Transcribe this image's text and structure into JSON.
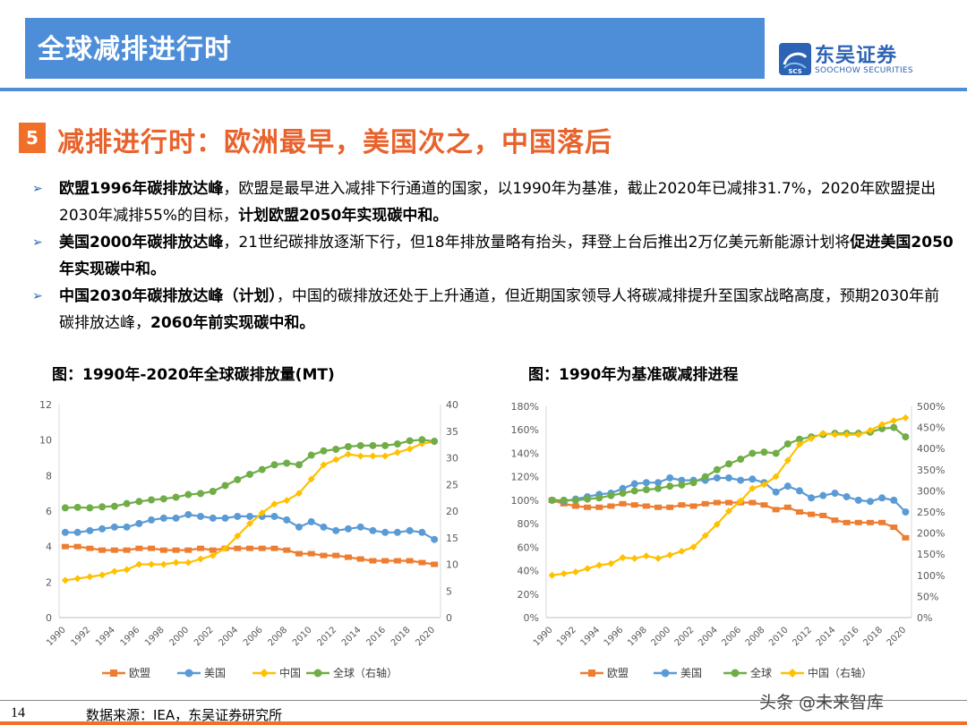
{
  "header": {
    "title": "全球减排进行时"
  },
  "logo": {
    "cn": "东吴证券",
    "en": "SOOCHOW SECURITIES",
    "mark": "SCS"
  },
  "section": {
    "number": "5",
    "title": "减排进行时：欧洲最早，美国次之，中国落后"
  },
  "bullets": [
    {
      "parts": [
        {
          "t": "欧盟1996年碳排放达峰",
          "b": true
        },
        {
          "t": "，欧盟是最早进入减排下行通道的国家，以1990年为基准，截止2020年已减排31.7%，2020年欧盟提出2030年减排55%的目标，",
          "b": false
        },
        {
          "t": "计划欧盟2050年实现碳中和。",
          "b": true
        }
      ]
    },
    {
      "parts": [
        {
          "t": "美国2000年碳排放达峰",
          "b": true
        },
        {
          "t": "，21世纪碳排放逐渐下行，但18年排放量略有抬头，拜登上台后推出2万亿美元新能源计划将",
          "b": false
        },
        {
          "t": "促进美国2050年实现碳中和。",
          "b": true
        }
      ]
    },
    {
      "parts": [
        {
          "t": "中国2030年碳排放达峰（计划）",
          "b": true
        },
        {
          "t": "，中国的碳排放还处于上升通道，但近期国家领导人将碳减排提升至国家战略高度，预期2030年前碳排放达峰，",
          "b": false
        },
        {
          "t": "2060年前实现碳中和。",
          "b": true
        }
      ]
    }
  ],
  "footer": {
    "page": "14",
    "source": "数据来源：IEA，东吴证券研究所",
    "watermark": "头条 @未来智库"
  },
  "colors": {
    "eu": "#ED7D31",
    "us": "#5B9BD5",
    "cn": "#FFC000",
    "global": "#70AD47"
  },
  "chart_data": [
    {
      "type": "line",
      "title": "图：1990年-2020年全球碳排放量(MT)",
      "x": [
        1990,
        1991,
        1992,
        1993,
        1994,
        1995,
        1996,
        1997,
        1998,
        1999,
        2000,
        2001,
        2002,
        2003,
        2004,
        2005,
        2006,
        2007,
        2008,
        2009,
        2010,
        2011,
        2012,
        2013,
        2014,
        2015,
        2016,
        2017,
        2018,
        2019,
        2020
      ],
      "xticks": [
        "1990",
        "1992",
        "1994",
        "1996",
        "1998",
        "2000",
        "2002",
        "2004",
        "2006",
        "2008",
        "2010",
        "2012",
        "2014",
        "2016",
        "2018",
        "2020"
      ],
      "ylim_left": [
        0,
        12
      ],
      "yticks_left": [
        "0",
        "2",
        "4",
        "6",
        "8",
        "10",
        "12"
      ],
      "ylim_right": [
        0,
        40
      ],
      "yticks_right": [
        "0",
        "5",
        "10",
        "15",
        "20",
        "25",
        "30",
        "35",
        "40"
      ],
      "series": [
        {
          "name": "欧盟",
          "key": "eu",
          "axis": "left",
          "values": [
            4.0,
            4.0,
            3.9,
            3.8,
            3.8,
            3.8,
            3.9,
            3.9,
            3.8,
            3.8,
            3.8,
            3.9,
            3.8,
            3.9,
            3.9,
            3.9,
            3.9,
            3.9,
            3.8,
            3.6,
            3.6,
            3.5,
            3.5,
            3.4,
            3.3,
            3.2,
            3.2,
            3.2,
            3.2,
            3.1,
            3.0
          ]
        },
        {
          "name": "美国",
          "key": "us",
          "axis": "left",
          "values": [
            4.8,
            4.8,
            4.9,
            5.0,
            5.1,
            5.1,
            5.3,
            5.5,
            5.6,
            5.6,
            5.8,
            5.7,
            5.6,
            5.6,
            5.7,
            5.7,
            5.7,
            5.7,
            5.5,
            5.1,
            5.4,
            5.1,
            4.9,
            5.0,
            5.1,
            4.9,
            4.8,
            4.8,
            4.9,
            4.8,
            4.4
          ]
        },
        {
          "name": "中国",
          "key": "cn",
          "axis": "left",
          "values": [
            2.1,
            2.2,
            2.3,
            2.4,
            2.6,
            2.7,
            3.0,
            3.0,
            3.0,
            3.1,
            3.1,
            3.3,
            3.5,
            3.9,
            4.6,
            5.3,
            5.9,
            6.4,
            6.6,
            7.0,
            7.8,
            8.6,
            8.9,
            9.2,
            9.1,
            9.1,
            9.1,
            9.3,
            9.5,
            9.8,
            9.9
          ]
        },
        {
          "name": "全球（右轴）",
          "key": "global",
          "axis": "right",
          "values": [
            20.6,
            20.7,
            20.6,
            20.8,
            20.9,
            21.4,
            21.8,
            22.1,
            22.3,
            22.6,
            23.1,
            23.3,
            23.7,
            24.8,
            25.9,
            26.9,
            27.8,
            28.7,
            29.0,
            28.7,
            30.5,
            31.3,
            31.6,
            32.1,
            32.3,
            32.3,
            32.3,
            32.6,
            33.2,
            33.4,
            33.1
          ]
        }
      ]
    },
    {
      "type": "line",
      "title": "图：1990年为基准碳减排进程",
      "x": [
        1990,
        1991,
        1992,
        1993,
        1994,
        1995,
        1996,
        1997,
        1998,
        1999,
        2000,
        2001,
        2002,
        2003,
        2004,
        2005,
        2006,
        2007,
        2008,
        2009,
        2010,
        2011,
        2012,
        2013,
        2014,
        2015,
        2016,
        2017,
        2018,
        2019,
        2020
      ],
      "xticks": [
        "1990",
        "1992",
        "1994",
        "1996",
        "1998",
        "2000",
        "2002",
        "2004",
        "2006",
        "2008",
        "2010",
        "2012",
        "2014",
        "2016",
        "2018",
        "2020"
      ],
      "ylim_left": [
        0,
        180
      ],
      "yticks_left": [
        "0%",
        "20%",
        "40%",
        "60%",
        "80%",
        "100%",
        "120%",
        "140%",
        "160%",
        "180%"
      ],
      "ylim_right": [
        0,
        500
      ],
      "yticks_right": [
        "0%",
        "50%",
        "100%",
        "150%",
        "200%",
        "250%",
        "300%",
        "350%",
        "400%",
        "450%",
        "500%"
      ],
      "series": [
        {
          "name": "欧盟",
          "key": "eu",
          "axis": "left",
          "values": [
            100,
            97,
            95,
            94,
            94,
            95,
            97,
            96,
            95,
            94,
            94,
            96,
            95,
            97,
            98,
            98,
            98,
            98,
            96,
            92,
            94,
            90,
            88,
            87,
            83,
            81,
            81,
            81,
            81,
            77,
            68
          ]
        },
        {
          "name": "美国",
          "key": "us",
          "axis": "left",
          "values": [
            100,
            99,
            101,
            103,
            105,
            106,
            110,
            114,
            115,
            115,
            119,
            117,
            117,
            117,
            119,
            119,
            117,
            118,
            115,
            107,
            112,
            108,
            102,
            104,
            106,
            103,
            100,
            99,
            102,
            100,
            90
          ]
        },
        {
          "name": "全球",
          "key": "global",
          "axis": "left",
          "values": [
            100,
            100,
            100,
            101,
            102,
            104,
            106,
            108,
            109,
            110,
            112,
            113,
            115,
            120,
            126,
            131,
            135,
            140,
            141,
            140,
            148,
            152,
            154,
            156,
            157,
            157,
            157,
            158,
            161,
            162,
            154
          ]
        },
        {
          "name": "中国（右轴）",
          "key": "cn",
          "axis": "right",
          "values": [
            100,
            104,
            108,
            116,
            124,
            128,
            142,
            140,
            146,
            140,
            148,
            157,
            167,
            194,
            221,
            252,
            276,
            306,
            315,
            334,
            372,
            410,
            424,
            436,
            433,
            433,
            433,
            443,
            457,
            466,
            473
          ]
        }
      ]
    }
  ]
}
